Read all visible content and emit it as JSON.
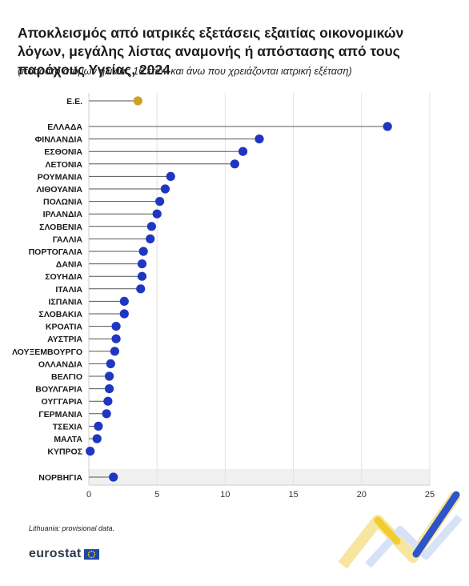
{
  "header": {
    "title": "Αποκλεισμός από ιατρικές εξετάσεις εξαιτίας οικονομικών λόγων, μεγάλης λίστας αναμονής ή απόστασης από τους παρόχους Υγείας, 2024",
    "subtitle": "(ποσοστό ατόμων ηλικίας 16 ετών και άνω που χρειάζονται ιατρική εξέταση)"
  },
  "footer": {
    "note": "Lithuania: provisional data.",
    "logo_text": "eurostat"
  },
  "colors": {
    "eu_dot": "#c9a227",
    "country_dot": "#1f36c2",
    "stem": "#555555",
    "grid": "#e2e2e2",
    "band": "#f0f0f0"
  },
  "chart_data": {
    "type": "dot",
    "orientation": "horizontal",
    "xlim": [
      0,
      25
    ],
    "xticks": [
      0,
      5,
      10,
      15,
      20,
      25
    ],
    "grid": true,
    "categories": [
      "Ε.Ε.",
      "ΕΛΛΑΔΑ",
      "ΦΙΝΛΑΝΔΙΑ",
      "ΕΣΘΟΝΙΑ",
      "ΛΕΤΟΝΙΑ",
      "ΡΟΥΜΑΝΙΑ",
      "ΛΙΘΟΥΑΝΙΑ",
      "ΠΟΛΩΝΙΑ",
      "ΙΡΛΑΝΔΙΑ",
      "ΣΛΟΒΕΝΙΑ",
      "ΓΑΛΛΙΑ",
      "ΠΟΡΤΟΓΑΛΙΑ",
      "ΔΑΝΙΑ",
      "ΣΟΥΗΔΙΑ",
      "ΙΤΑΛΙΑ",
      "ΙΣΠΑΝΙΑ",
      "ΣΛΟΒΑΚΙΑ",
      "ΚΡΟΑΤΙΑ",
      "ΑΥΣΤΡΙΑ",
      "ΛΟΥΞΕΜΒΟΥΡΓΟ",
      "ΟΛΛΑΝΔΙΑ",
      "ΒΕΛΓΙΟ",
      "ΒΟΥΛΓΑΡΙΑ",
      "ΟΥΓΓΑΡΙΑ",
      "ΓΕΡΜΑΝΙΑ",
      "ΤΣΕΧΙΑ",
      "ΜΑΛΤΑ",
      "ΚΥΠΡΟΣ",
      "ΝΟΡΒΗΓΙΑ"
    ],
    "values": [
      3.6,
      21.9,
      12.5,
      11.3,
      10.7,
      6.0,
      5.6,
      5.2,
      5.0,
      4.6,
      4.5,
      4.0,
      3.9,
      3.9,
      3.8,
      2.6,
      2.6,
      2.0,
      2.0,
      1.9,
      1.6,
      1.5,
      1.5,
      1.4,
      1.3,
      0.7,
      0.6,
      0.1,
      1.8
    ]
  }
}
